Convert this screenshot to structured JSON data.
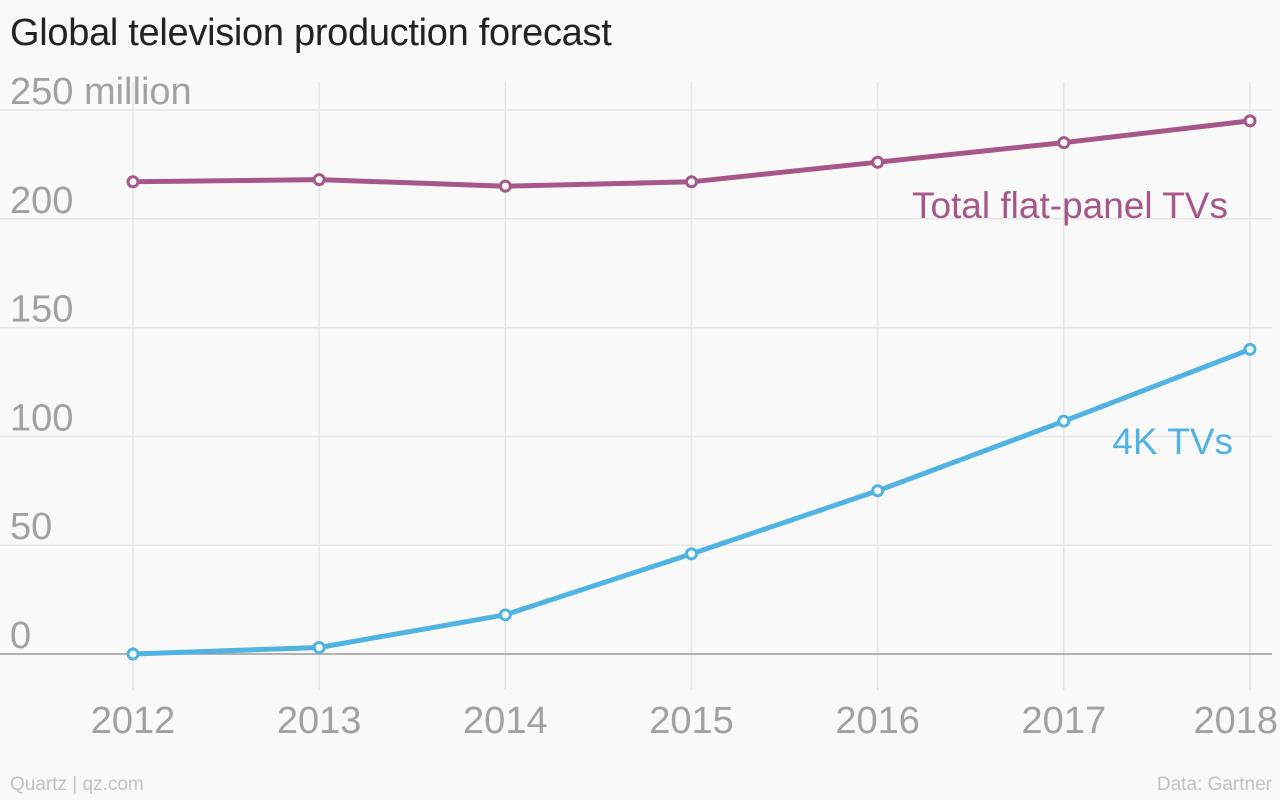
{
  "chart_data": {
    "type": "line",
    "title": "Global television production forecast",
    "x": [
      "2012",
      "2013",
      "2014",
      "2015",
      "2016",
      "2017",
      "2018"
    ],
    "y_ticks": [
      {
        "value": 250,
        "label": "250 million"
      },
      {
        "value": 200,
        "label": "200"
      },
      {
        "value": 150,
        "label": "150"
      },
      {
        "value": 100,
        "label": "100"
      },
      {
        "value": 50,
        "label": "50"
      },
      {
        "value": 0,
        "label": "0"
      }
    ],
    "ylim": [
      0,
      250
    ],
    "grid": true,
    "legend": "inline labels",
    "series": [
      {
        "name": "Total flat-panel TVs",
        "color": "#a65788",
        "values": [
          217,
          218,
          215,
          217,
          226,
          235,
          245
        ]
      },
      {
        "name": "4K TVs",
        "color": "#51b3e1",
        "values": [
          0,
          3,
          18,
          46,
          75,
          107,
          140
        ]
      }
    ]
  },
  "footer": {
    "source": "Quartz | qz.com",
    "credit": "Data: Gartner"
  }
}
